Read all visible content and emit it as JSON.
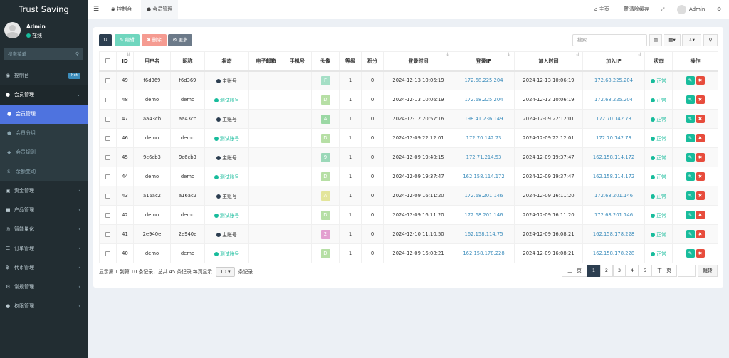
{
  "app": {
    "title": "Trust Saving"
  },
  "user": {
    "name": "Admin",
    "status": "在线"
  },
  "sidebar": {
    "search_placeholder": "搜索菜单",
    "items": [
      {
        "label": "控制台",
        "icon": "dashboard-icon",
        "badge": "hot"
      },
      {
        "label": "会员管理",
        "icon": "user-circle-icon"
      },
      {
        "label": "会员管理",
        "icon": "user-icon"
      },
      {
        "label": "会员分组",
        "icon": "users-icon"
      },
      {
        "label": "会员规则",
        "icon": "rule-icon"
      },
      {
        "label": "余额变动",
        "icon": "dollar-icon"
      },
      {
        "label": "资金管理",
        "icon": "money-icon"
      },
      {
        "label": "产品管理",
        "icon": "product-icon"
      },
      {
        "label": "智能量化",
        "icon": "chart-icon"
      },
      {
        "label": "订单管理",
        "icon": "order-icon"
      },
      {
        "label": "代币管理",
        "icon": "bitcoin-icon"
      },
      {
        "label": "常规管理",
        "icon": "settings-icon"
      },
      {
        "label": "权限管理",
        "icon": "group-icon"
      }
    ]
  },
  "topbar": {
    "tabs": [
      {
        "label": "控制台"
      },
      {
        "label": "会员管理"
      }
    ],
    "home": "主页",
    "clear_cache": "清除缓存",
    "admin": "Admin"
  },
  "toolbar": {
    "edit": "编辑",
    "delete": "删除",
    "more": "更多",
    "search_placeholder": "搜索"
  },
  "table": {
    "headers": [
      "ID",
      "用户名",
      "昵称",
      "状态",
      "电子邮箱",
      "手机号",
      "头像",
      "等级",
      "积分",
      "登录时间",
      "登录IP",
      "加入时间",
      "加入IP",
      "状态",
      "操作"
    ],
    "rows": [
      {
        "id": "49",
        "username": "f6d369",
        "nickname": "f6d369",
        "type": "主账号",
        "type_color": "#2c3e50",
        "avatar": "F",
        "avatar_color": "#a5dfc6",
        "level": "1",
        "score": "0",
        "login_time": "2024-12-13 10:06:19",
        "login_ip": "172.68.225.204",
        "join_time": "2024-12-13 10:06:19",
        "join_ip": "172.68.225.204",
        "status": "正常"
      },
      {
        "id": "48",
        "username": "demo",
        "nickname": "demo",
        "type": "测试账号",
        "type_color": "#18bc9c",
        "avatar": "D",
        "avatar_color": "#b6dfa5",
        "level": "1",
        "score": "0",
        "login_time": "2024-12-13 10:06:19",
        "login_ip": "172.68.225.204",
        "join_time": "2024-12-13 10:06:19",
        "join_ip": "172.68.225.204",
        "status": "正常"
      },
      {
        "id": "47",
        "username": "aa43cb",
        "nickname": "aa43cb",
        "type": "主账号",
        "type_color": "#2c3e50",
        "avatar": "A",
        "avatar_color": "#9bd8a4",
        "level": "1",
        "score": "0",
        "login_time": "2024-12-12 20:57:16",
        "login_ip": "198.41.236.149",
        "join_time": "2024-12-09 22:12:01",
        "join_ip": "172.70.142.73",
        "status": "正常"
      },
      {
        "id": "46",
        "username": "demo",
        "nickname": "demo",
        "type": "测试账号",
        "type_color": "#18bc9c",
        "avatar": "D",
        "avatar_color": "#b6dfa5",
        "level": "1",
        "score": "0",
        "login_time": "2024-12-09 22:12:01",
        "login_ip": "172.70.142.73",
        "join_time": "2024-12-09 22:12:01",
        "join_ip": "172.70.142.73",
        "status": "正常"
      },
      {
        "id": "45",
        "username": "9c6cb3",
        "nickname": "9c6cb3",
        "type": "主账号",
        "type_color": "#2c3e50",
        "avatar": "9",
        "avatar_color": "#9bd8b8",
        "level": "1",
        "score": "0",
        "login_time": "2024-12-09 19:40:15",
        "login_ip": "172.71.214.53",
        "join_time": "2024-12-09 19:37:47",
        "join_ip": "162.158.114.172",
        "status": "正常"
      },
      {
        "id": "44",
        "username": "demo",
        "nickname": "demo",
        "type": "测试账号",
        "type_color": "#18bc9c",
        "avatar": "D",
        "avatar_color": "#b6dfa5",
        "level": "1",
        "score": "0",
        "login_time": "2024-12-09 19:37:47",
        "login_ip": "162.158.114.172",
        "join_time": "2024-12-09 19:37:47",
        "join_ip": "162.158.114.172",
        "status": "正常"
      },
      {
        "id": "43",
        "username": "a16ac2",
        "nickname": "a16ac2",
        "type": "主账号",
        "type_color": "#2c3e50",
        "avatar": "A",
        "avatar_color": "#e3e59b",
        "level": "1",
        "score": "0",
        "login_time": "2024-12-09 16:11:20",
        "login_ip": "172.68.201.146",
        "join_time": "2024-12-09 16:11:20",
        "join_ip": "172.68.201.146",
        "status": "正常"
      },
      {
        "id": "42",
        "username": "demo",
        "nickname": "demo",
        "type": "测试账号",
        "type_color": "#18bc9c",
        "avatar": "D",
        "avatar_color": "#b6dfa5",
        "level": "1",
        "score": "0",
        "login_time": "2024-12-09 16:11:20",
        "login_ip": "172.68.201.146",
        "join_time": "2024-12-09 16:11:20",
        "join_ip": "172.68.201.146",
        "status": "正常"
      },
      {
        "id": "41",
        "username": "2e940e",
        "nickname": "2e940e",
        "type": "主账号",
        "type_color": "#2c3e50",
        "avatar": "2",
        "avatar_color": "#e39fd0",
        "level": "1",
        "score": "0",
        "login_time": "2024-12-10 11:10:50",
        "login_ip": "162.158.114.75",
        "join_time": "2024-12-09 16:08:21",
        "join_ip": "162.158.178.228",
        "status": "正常"
      },
      {
        "id": "40",
        "username": "demo",
        "nickname": "demo",
        "type": "测试账号",
        "type_color": "#18bc9c",
        "avatar": "D",
        "avatar_color": "#b6dfa5",
        "level": "1",
        "score": "0",
        "login_time": "2024-12-09 16:08:21",
        "login_ip": "162.158.178.228",
        "join_time": "2024-12-09 16:08:21",
        "join_ip": "162.158.178.228",
        "status": "正常"
      }
    ]
  },
  "footer": {
    "summary_prefix": "显示第 1 到第 10 条记录，总共 45 条记录 每页显示",
    "per_page": "10",
    "summary_suffix": "条记录",
    "prev": "上一页",
    "pages": [
      "1",
      "2",
      "3",
      "4",
      "5"
    ],
    "next": "下一页",
    "jump": "跳转"
  },
  "colors": {
    "sidebar_bg": "#222d32",
    "active_blue": "#4e73df",
    "success": "#18bc9c",
    "danger": "#e74c3c",
    "primary": "#2c3e50"
  }
}
